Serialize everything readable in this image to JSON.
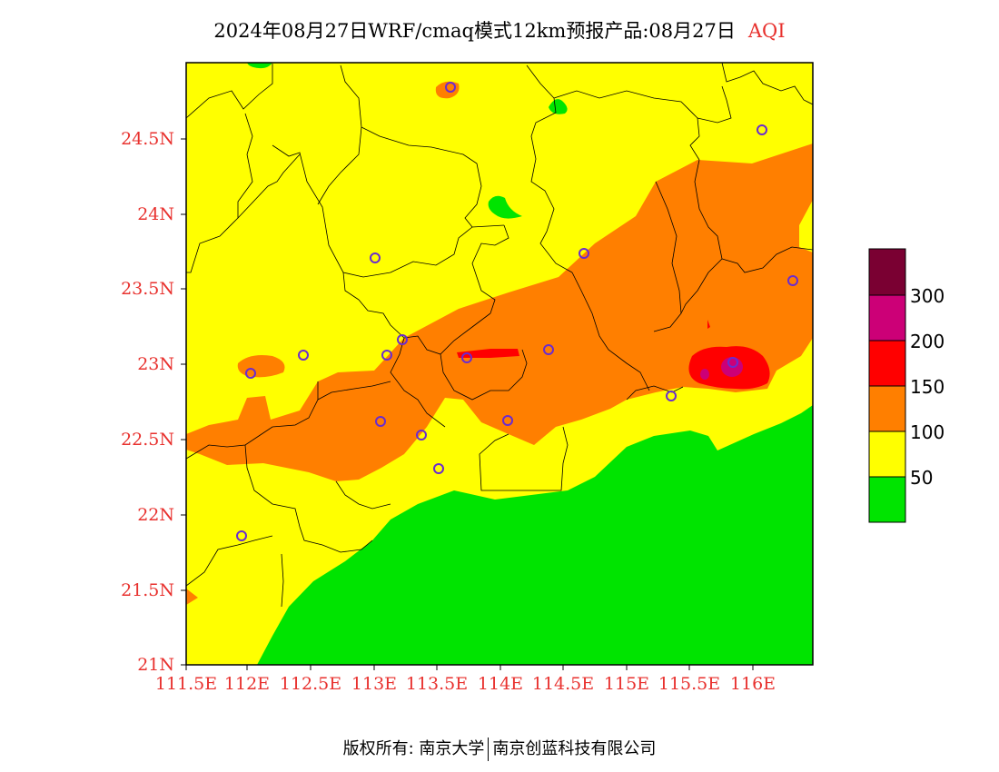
{
  "title": {
    "main": "2024年08月27日WRF/cmaq模式12km预报产品:08月27日",
    "aqi_label": "AQI"
  },
  "axes": {
    "lat_labels": [
      "24.5N",
      "24N",
      "23.5N",
      "23N",
      "22.5N",
      "22N",
      "21.5N",
      "21N"
    ],
    "lon_labels": [
      "111.5E",
      "112E",
      "112.5E",
      "113E",
      "113.5E",
      "114E",
      "114.5E",
      "115E",
      "115.5E",
      "116E"
    ]
  },
  "legend": {
    "labels": [
      "300",
      "200",
      "150",
      "100",
      "50"
    ],
    "colors": [
      "#7a0032",
      "#cc0077",
      "#ff0000",
      "#ff7f00",
      "#ffff00",
      "#00e400"
    ]
  },
  "map": {
    "lat_range": [
      21,
      25
    ],
    "lon_range": [
      111.5,
      116.7
    ],
    "aqi_zones": [
      "good-green",
      "moderate-yellow",
      "sensitive-orange",
      "unhealthy-red",
      "very-unhealthy-purple"
    ]
  },
  "footer": {
    "left": "版权所有: 南京大学",
    "right": "南京创蓝科技有限公司"
  }
}
